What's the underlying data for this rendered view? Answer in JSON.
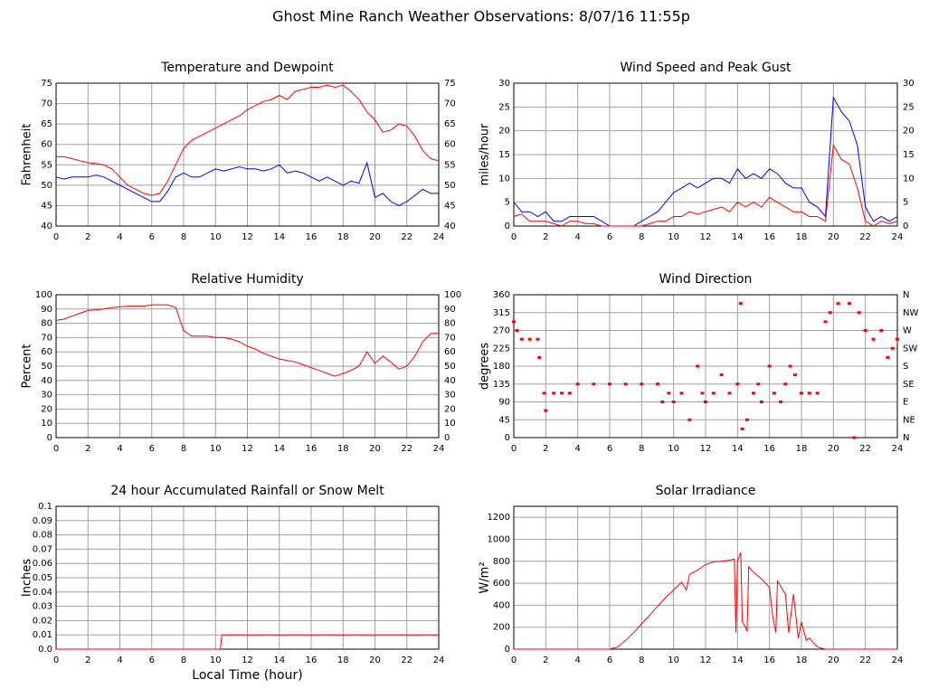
{
  "title": "Ghost Mine Ranch Weather Observations: 8/07/16 11:55p",
  "chart_data": [
    {
      "type": "line",
      "title": "Temperature and Dewpoint",
      "ylabel": "Fahrenheit",
      "x": [
        0,
        0.5,
        1,
        1.5,
        2,
        2.5,
        3,
        3.5,
        4,
        4.5,
        5,
        5.5,
        6,
        6.5,
        7,
        7.5,
        8,
        8.5,
        9,
        9.5,
        10,
        10.5,
        11,
        11.5,
        12,
        12.5,
        13,
        13.5,
        14,
        14.5,
        15,
        15.5,
        16,
        16.5,
        17,
        17.5,
        18,
        18.5,
        19,
        19.5,
        20,
        20.5,
        21,
        21.5,
        22,
        22.5,
        23,
        23.5,
        24
      ],
      "series": [
        {
          "color": "#ff0000",
          "values": [
            57,
            57,
            56.5,
            56,
            55.5,
            55.3,
            55,
            54,
            52,
            50,
            49,
            48,
            47.5,
            48,
            51,
            55,
            59,
            61,
            62,
            63,
            64,
            65,
            66,
            67,
            68.5,
            69.5,
            70.5,
            71,
            72,
            71,
            73,
            73.5,
            74,
            74,
            74.5,
            74,
            74.5,
            73,
            71,
            68,
            66,
            63,
            63.5,
            65,
            64.5,
            62,
            58.5,
            56.5,
            56
          ]
        },
        {
          "color": "#0000ff",
          "values": [
            52,
            51.5,
            52,
            52,
            52,
            52.5,
            52,
            51,
            50,
            49,
            48,
            47,
            46,
            46,
            48.5,
            52,
            53,
            52,
            52,
            53,
            54,
            53.5,
            54,
            54.5,
            54,
            54,
            53.5,
            54,
            55,
            53,
            53.5,
            53,
            52,
            51,
            52,
            51,
            50,
            51,
            50.5,
            55.5,
            47,
            48,
            46,
            45,
            46,
            47.5,
            49,
            48,
            48
          ]
        }
      ],
      "xlim": [
        0,
        24
      ],
      "xticks": [
        0,
        2,
        4,
        6,
        8,
        10,
        12,
        14,
        16,
        18,
        20,
        22,
        24
      ],
      "ylim": [
        40,
        75
      ],
      "yticks": [
        40,
        45,
        50,
        55,
        60,
        65,
        70,
        75
      ],
      "y2lim": [
        40,
        75
      ],
      "y2ticks": [
        40,
        45,
        50,
        55,
        60,
        65,
        70,
        75
      ],
      "grid": true
    },
    {
      "type": "line",
      "title": "Wind Speed and Peak Gust",
      "ylabel": "miles/hour",
      "x": [
        0,
        0.5,
        1,
        1.5,
        2,
        2.5,
        3,
        3.5,
        4,
        4.5,
        5,
        5.5,
        6,
        6.5,
        7,
        7.5,
        8,
        8.5,
        9,
        9.5,
        10,
        10.5,
        11,
        11.5,
        12,
        12.5,
        13,
        13.5,
        14,
        14.5,
        15,
        15.5,
        16,
        16.5,
        17,
        17.5,
        18,
        18.5,
        19,
        19.5,
        20,
        20.5,
        21,
        21.5,
        22,
        22.5,
        23,
        23.5,
        24
      ],
      "series": [
        {
          "color": "#0000ff",
          "values": [
            5,
            3,
            3,
            2,
            3,
            1,
            1,
            2,
            2,
            2,
            2,
            1,
            0,
            0,
            0,
            0,
            1,
            2,
            3,
            5,
            7,
            8,
            9,
            8,
            9,
            10,
            10,
            9,
            12,
            10,
            11,
            10,
            12,
            11,
            9,
            8,
            8,
            5,
            4,
            2,
            27,
            24,
            22,
            17,
            4,
            1,
            2,
            1,
            2
          ]
        },
        {
          "color": "#ff0000",
          "values": [
            2,
            2.5,
            1,
            1,
            1,
            0.5,
            0,
            1,
            1,
            0.5,
            0.5,
            0,
            0,
            0,
            0,
            0,
            0,
            0.5,
            1,
            1,
            2,
            2,
            3,
            2.5,
            3,
            3.5,
            4,
            3,
            5,
            4,
            5,
            4,
            6,
            5,
            4,
            3,
            3,
            2,
            2,
            1,
            17,
            14,
            13,
            8,
            1,
            0,
            1,
            0.5,
            1
          ]
        }
      ],
      "xlim": [
        0,
        24
      ],
      "xticks": [
        0,
        2,
        4,
        6,
        8,
        10,
        12,
        14,
        16,
        18,
        20,
        22,
        24
      ],
      "ylim": [
        0,
        30
      ],
      "yticks": [
        0,
        5,
        10,
        15,
        20,
        25,
        30
      ],
      "y2lim": [
        0,
        30
      ],
      "y2ticks": [
        0,
        5,
        10,
        15,
        20,
        25,
        30
      ],
      "grid": true
    },
    {
      "type": "line",
      "title": "Relative Humidity",
      "ylabel": "Percent",
      "x": [
        0,
        0.5,
        1,
        1.5,
        2,
        2.5,
        3,
        3.5,
        4,
        4.5,
        5,
        5.5,
        6,
        6.5,
        7,
        7.5,
        8,
        8.5,
        9,
        9.5,
        10,
        10.5,
        11,
        11.5,
        12,
        12.5,
        13,
        13.5,
        14,
        14.5,
        15,
        15.5,
        16,
        16.5,
        17,
        17.5,
        18,
        18.5,
        19,
        19.5,
        20,
        20.5,
        21,
        21.5,
        22,
        22.5,
        23,
        23.5,
        24
      ],
      "series": [
        {
          "color": "#ff0000",
          "values": [
            82,
            83,
            85,
            87,
            89,
            89.5,
            90,
            91,
            91.5,
            92,
            92,
            92,
            93,
            93,
            93,
            91,
            75,
            71,
            71,
            71,
            70,
            70,
            69,
            67,
            64,
            62,
            59,
            57,
            55,
            54,
            53,
            51,
            49,
            47,
            45,
            43,
            45,
            47,
            50,
            60,
            52,
            57,
            53,
            48,
            50,
            57,
            67,
            73,
            73
          ]
        }
      ],
      "xlim": [
        0,
        24
      ],
      "xticks": [
        0,
        2,
        4,
        6,
        8,
        10,
        12,
        14,
        16,
        18,
        20,
        22,
        24
      ],
      "ylim": [
        0,
        100
      ],
      "yticks": [
        0,
        10,
        20,
        30,
        40,
        50,
        60,
        70,
        80,
        90,
        100
      ],
      "y2lim": [
        0,
        100
      ],
      "y2ticks": [
        0,
        10,
        20,
        30,
        40,
        50,
        60,
        70,
        80,
        90,
        100
      ],
      "grid": true
    },
    {
      "type": "scatter",
      "title": "Wind Direction",
      "ylabel": "degrees",
      "x": [
        0,
        0.2,
        0.5,
        1,
        1.5,
        1.6,
        1.9,
        2,
        2.5,
        3,
        3.5,
        4,
        5,
        6,
        7,
        8,
        9,
        9.3,
        9.7,
        10,
        10.5,
        11,
        11.5,
        11.8,
        12,
        12.5,
        13,
        13.5,
        14,
        14.2,
        14.3,
        14.6,
        15,
        15.3,
        15.5,
        16,
        16.3,
        16.7,
        17,
        17.3,
        17.6,
        18,
        18.5,
        19,
        19.5,
        19.8,
        20.3,
        21,
        21.3,
        21.6,
        22,
        22.5,
        23,
        23.4,
        23.7,
        24
      ],
      "series": [
        {
          "color": "#ff0000",
          "values": [
            292,
            270,
            248,
            248,
            248,
            202,
            112,
            68,
            112,
            112,
            112,
            135,
            135,
            135,
            135,
            135,
            135,
            90,
            112,
            90,
            112,
            45,
            180,
            112,
            90,
            112,
            158,
            112,
            135,
            338,
            22,
            45,
            112,
            135,
            90,
            180,
            112,
            90,
            135,
            180,
            158,
            112,
            112,
            112,
            292,
            315,
            338,
            338,
            0,
            315,
            270,
            248,
            270,
            202,
            225,
            248
          ]
        }
      ],
      "xlim": [
        0,
        24
      ],
      "xticks": [
        0,
        2,
        4,
        6,
        8,
        10,
        12,
        14,
        16,
        18,
        20,
        22,
        24
      ],
      "ylim": [
        0,
        360
      ],
      "yticks": [
        0,
        45,
        90,
        135,
        180,
        225,
        270,
        315,
        360
      ],
      "y2lim": [
        0,
        360
      ],
      "y2ticks": [
        {
          "value": 0,
          "label": "N"
        },
        {
          "value": 45,
          "label": "NE"
        },
        {
          "value": 90,
          "label": "E"
        },
        {
          "value": 135,
          "label": "SE"
        },
        {
          "value": 180,
          "label": "S"
        },
        {
          "value": 225,
          "label": "SW"
        },
        {
          "value": 270,
          "label": "W"
        },
        {
          "value": 315,
          "label": "NW"
        },
        {
          "value": 360,
          "label": "N"
        }
      ],
      "grid": true
    },
    {
      "type": "line",
      "title": "24 hour Accumulated Rainfall or Snow Melt",
      "ylabel": "Inches",
      "xlabel": "Local Time (hour)",
      "x": [
        0,
        10.3,
        10.4,
        24
      ],
      "series": [
        {
          "color": "#ff0000",
          "values": [
            0,
            0,
            0.01,
            0.01
          ]
        }
      ],
      "xlim": [
        0,
        24
      ],
      "xticks": [
        0,
        2,
        4,
        6,
        8,
        10,
        12,
        14,
        16,
        18,
        20,
        22,
        24
      ],
      "ylim": [
        0,
        0.1
      ],
      "yticks": [
        {
          "value": 0,
          "label": "0.0"
        },
        0.01,
        0.02,
        0.03,
        0.04,
        0.05,
        0.06,
        0.07,
        0.08,
        0.09,
        0.1
      ],
      "grid": true
    },
    {
      "type": "line",
      "title": "Solar Irradiance",
      "ylabel": "W/m²",
      "x": [
        0,
        6,
        6.5,
        7,
        7.5,
        8,
        8.5,
        9,
        9.5,
        10,
        10.5,
        10.8,
        11,
        11.5,
        12,
        12.5,
        13,
        13.5,
        13.8,
        13.9,
        14,
        14.2,
        14.3,
        14.5,
        14.6,
        14.7,
        15,
        15.5,
        16,
        16.2,
        16.4,
        16.5,
        17,
        17.2,
        17.5,
        17.8,
        18,
        18.3,
        18.5,
        19,
        19.5,
        24
      ],
      "series": [
        {
          "color": "#ff0000",
          "values": [
            0,
            0,
            20,
            80,
            150,
            230,
            310,
            390,
            470,
            540,
            610,
            540,
            680,
            720,
            770,
            795,
            800,
            810,
            820,
            150,
            800,
            880,
            250,
            200,
            160,
            750,
            700,
            640,
            560,
            300,
            150,
            620,
            500,
            150,
            500,
            100,
            250,
            80,
            100,
            20,
            0,
            0
          ]
        }
      ],
      "xlim": [
        0,
        24
      ],
      "xticks": [
        0,
        2,
        4,
        6,
        8,
        10,
        12,
        14,
        16,
        18,
        20,
        22,
        24
      ],
      "ylim": [
        0,
        1300
      ],
      "yticks": [
        0,
        200,
        400,
        600,
        800,
        1000,
        1200
      ],
      "grid": true
    }
  ]
}
